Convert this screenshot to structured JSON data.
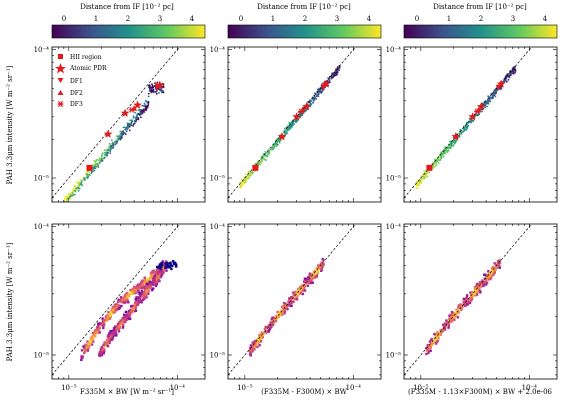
{
  "colorbar": {
    "label": "Distance from IF [10⁻² pc]",
    "ticks": [
      "0",
      "1",
      "2",
      "3",
      "4"
    ],
    "range": [
      -0.4,
      4.4
    ],
    "colormap": [
      "#440154",
      "#3b528b",
      "#21918c",
      "#5ec962",
      "#fde725"
    ]
  },
  "density_colormap": [
    "#0d0887",
    "#6a00a8",
    "#b12a90",
    "#e16462",
    "#fca636",
    "#f0f921"
  ],
  "axes": {
    "ylabel": "PAH 3.3μm intensity [W m⁻² sr⁻¹]",
    "xlabels": [
      "F335M × BW [W m⁻² sr⁻¹]",
      "(F335M - F300M) × BW",
      "(F335M - 1.13×F300M) × BW + 2.0e-06"
    ],
    "yticks": [
      "10⁻⁵",
      "10⁻⁴"
    ],
    "xticks": [
      "10⁻⁵",
      "10⁻⁴"
    ],
    "x_range": [
      7e-06,
      0.00018
    ],
    "y_range": [
      6.5e-06,
      0.000105
    ],
    "scale": "log",
    "reference_line": "one-to-one dashed"
  },
  "legend": {
    "placement": "top-left",
    "entries": [
      {
        "label": "HII region",
        "marker": "square"
      },
      {
        "label": "Atomic PDR",
        "marker": "star"
      },
      {
        "label": "DF1",
        "marker": "triangle-down"
      },
      {
        "label": "DF2",
        "marker": "triangle-up"
      },
      {
        "label": "DF3",
        "marker": "asterisk"
      }
    ],
    "marker_color": "#e31a1c"
  },
  "chart_data": [
    {
      "type": "scatter",
      "panel": "top-left",
      "colored_by": "distance",
      "series": [
        {
          "name": "HII region",
          "x": [
            1.55e-05
          ],
          "y": [
            1.2e-05
          ]
        },
        {
          "name": "Atomic PDR",
          "x": [
            2.3e-05,
            3.3e-05,
            4.3e-05,
            6.9e-05
          ],
          "y": [
            2.2e-05,
            3.2e-05,
            3.7e-05,
            5.3e-05
          ]
        },
        {
          "name": "DF1",
          "x": [
            6.5e-05
          ],
          "y": [
            5.1e-05
          ]
        },
        {
          "name": "DF2",
          "x": [
            4e-05
          ],
          "y": [
            3.5e-05
          ]
        },
        {
          "name": "DF3",
          "x": [
            3.8e-05
          ],
          "y": [
            3.4e-05
          ]
        }
      ]
    },
    {
      "type": "scatter",
      "panel": "top-middle",
      "colored_by": "distance",
      "series": [
        {
          "name": "HII region",
          "x": [
            1.25e-05
          ],
          "y": [
            1.2e-05
          ]
        },
        {
          "name": "Atomic PDR",
          "x": [
            2.2e-05,
            3e-05,
            3.7e-05,
            5.6e-05
          ],
          "y": [
            2.1e-05,
            3e-05,
            3.6e-05,
            5.4e-05
          ]
        },
        {
          "name": "DF1",
          "x": [
            5.3e-05
          ],
          "y": [
            5.1e-05
          ]
        },
        {
          "name": "DF2",
          "x": [
            3.4e-05
          ],
          "y": [
            3.4e-05
          ]
        },
        {
          "name": "DF3",
          "x": [
            3.3e-05
          ],
          "y": [
            3.3e-05
          ]
        }
      ]
    },
    {
      "type": "scatter",
      "panel": "top-right",
      "colored_by": "distance",
      "series": [
        {
          "name": "HII region",
          "x": [
            1.2e-05
          ],
          "y": [
            1.2e-05
          ]
        },
        {
          "name": "Atomic PDR",
          "x": [
            2.1e-05,
            3e-05,
            3.6e-05,
            5.5e-05
          ],
          "y": [
            2.1e-05,
            3e-05,
            3.6e-05,
            5.4e-05
          ]
        },
        {
          "name": "DF1",
          "x": [
            5.2e-05
          ],
          "y": [
            5.1e-05
          ]
        },
        {
          "name": "DF2",
          "x": [
            3.4e-05
          ],
          "y": [
            3.4e-05
          ]
        },
        {
          "name": "DF3",
          "x": [
            3.3e-05
          ],
          "y": [
            3.3e-05
          ]
        }
      ]
    },
    {
      "type": "heatmap",
      "panel": "bottom-left",
      "description_of_density": "2D histogram",
      "ridges": [
        {
          "x": [
            1.3e-05,
            2e-05,
            3e-05,
            4.5e-05,
            6.5e-05,
            8e-05
          ],
          "y": [
            1e-05,
            1.7e-05,
            2.6e-05,
            3.4e-05,
            4.5e-05,
            5e-05
          ]
        },
        {
          "x": [
            1.9e-05,
            2.6e-05,
            3.5e-05,
            4.5e-05,
            6e-05,
            7.2e-05
          ],
          "y": [
            1e-05,
            1.5e-05,
            2e-05,
            2.7e-05,
            3.6e-05,
            4.4e-05
          ]
        }
      ]
    },
    {
      "type": "heatmap",
      "panel": "bottom-middle",
      "ridges": [
        {
          "x": [
            1.1e-05,
            1.7e-05,
            2.6e-05,
            3.8e-05,
            5.4e-05
          ],
          "y": [
            1.05e-05,
            1.7e-05,
            2.6e-05,
            3.7e-05,
            5.3e-05
          ]
        }
      ]
    },
    {
      "type": "heatmap",
      "panel": "bottom-right",
      "ridges": [
        {
          "x": [
            1.1e-05,
            1.7e-05,
            2.6e-05,
            3.8e-05,
            5.4e-05
          ],
          "y": [
            1.05e-05,
            1.7e-05,
            2.6e-05,
            3.7e-05,
            5.3e-05
          ]
        }
      ]
    }
  ]
}
